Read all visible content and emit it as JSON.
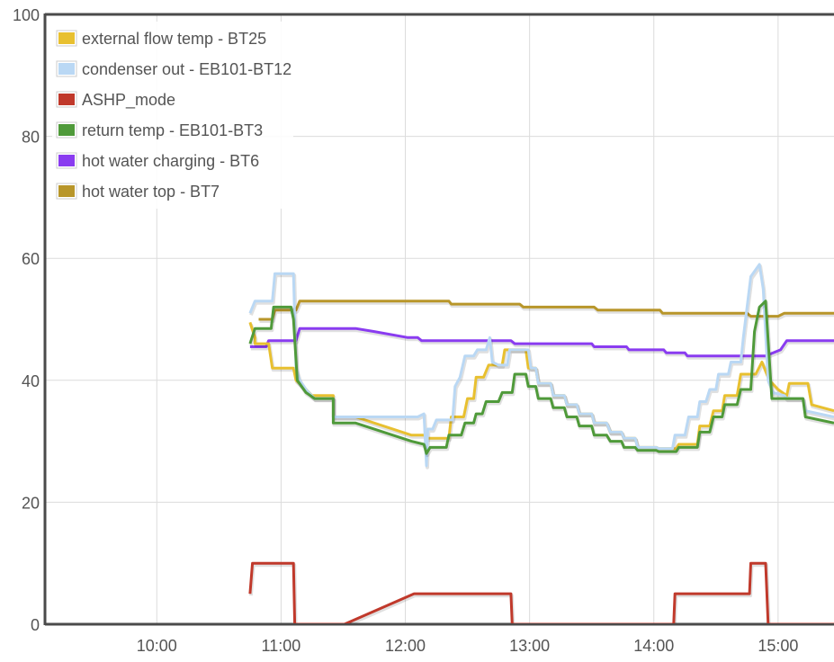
{
  "chart_data": {
    "type": "line",
    "title": "",
    "xlabel": "",
    "ylabel": "",
    "ylim": [
      0,
      100
    ],
    "xlim_hours": [
      9.1,
      15.45
    ],
    "grid": true,
    "legend_position": "top-left",
    "y_ticks": [
      {
        "value": 0,
        "label": "0"
      },
      {
        "value": 20,
        "label": "20"
      },
      {
        "value": 40,
        "label": "40"
      },
      {
        "value": 60,
        "label": "60"
      },
      {
        "value": 80,
        "label": "80"
      },
      {
        "value": 100,
        "label": "100"
      }
    ],
    "x_ticks": [
      {
        "value": 10,
        "label": "10:00"
      },
      {
        "value": 11,
        "label": "11:00"
      },
      {
        "value": 12,
        "label": "12:00"
      },
      {
        "value": 13,
        "label": "13:00"
      },
      {
        "value": 14,
        "label": "14:00"
      },
      {
        "value": 15,
        "label": "15:00"
      }
    ],
    "series": [
      {
        "name": "external flow temp - BT25",
        "color": "#e8c030",
        "points": [
          [
            10.75,
            49.5
          ],
          [
            10.79,
            47
          ],
          [
            10.79,
            46
          ],
          [
            10.9,
            46
          ],
          [
            10.93,
            42
          ],
          [
            11.1,
            42
          ],
          [
            11.12,
            40
          ],
          [
            11.2,
            38.5
          ],
          [
            11.25,
            37.5
          ],
          [
            11.42,
            37.5
          ],
          [
            11.42,
            34
          ],
          [
            11.6,
            34
          ],
          [
            12.05,
            31
          ],
          [
            12.15,
            31
          ],
          [
            12.18,
            30.5
          ],
          [
            12.35,
            30.5
          ],
          [
            12.37,
            34
          ],
          [
            12.47,
            34
          ],
          [
            12.5,
            37
          ],
          [
            12.55,
            37
          ],
          [
            12.57,
            40.5
          ],
          [
            12.63,
            40.5
          ],
          [
            12.67,
            42.5
          ],
          [
            12.78,
            42.5
          ],
          [
            12.8,
            45
          ],
          [
            12.97,
            45
          ],
          [
            12.99,
            42
          ],
          [
            13.05,
            42
          ],
          [
            13.07,
            39.5
          ],
          [
            13.17,
            39.5
          ],
          [
            13.19,
            37.5
          ],
          [
            13.28,
            37.5
          ],
          [
            13.3,
            36
          ],
          [
            13.38,
            36
          ],
          [
            13.4,
            34.5
          ],
          [
            13.5,
            34.5
          ],
          [
            13.52,
            33
          ],
          [
            13.62,
            33
          ],
          [
            13.65,
            31.5
          ],
          [
            13.74,
            31.5
          ],
          [
            13.76,
            30.5
          ],
          [
            13.85,
            30.5
          ],
          [
            13.87,
            29
          ],
          [
            14.02,
            29
          ],
          [
            14.04,
            28.8
          ],
          [
            14.18,
            28.8
          ],
          [
            14.2,
            29.5
          ],
          [
            14.35,
            29.5
          ],
          [
            14.37,
            32.5
          ],
          [
            14.45,
            32.5
          ],
          [
            14.48,
            35
          ],
          [
            14.55,
            35
          ],
          [
            14.57,
            37.5
          ],
          [
            14.67,
            37.5
          ],
          [
            14.7,
            41
          ],
          [
            14.82,
            41
          ],
          [
            14.87,
            43
          ],
          [
            14.93,
            40
          ],
          [
            15.0,
            38.5
          ],
          [
            15.07,
            37.5
          ],
          [
            15.09,
            39.5
          ],
          [
            15.24,
            39.5
          ],
          [
            15.27,
            36
          ],
          [
            15.45,
            35
          ]
        ]
      },
      {
        "name": "condenser out - EB101-BT12",
        "color": "#bad8f4",
        "points": [
          [
            10.75,
            51
          ],
          [
            10.79,
            53
          ],
          [
            10.93,
            53
          ],
          [
            10.95,
            57.5
          ],
          [
            11.1,
            57.5
          ],
          [
            11.12,
            42
          ],
          [
            11.15,
            40
          ],
          [
            11.2,
            38.5
          ],
          [
            11.27,
            37
          ],
          [
            11.42,
            37
          ],
          [
            11.42,
            34
          ],
          [
            11.62,
            34
          ],
          [
            11.8,
            34
          ],
          [
            12.1,
            34
          ],
          [
            12.15,
            34.5
          ],
          [
            12.17,
            26
          ],
          [
            12.18,
            32
          ],
          [
            12.22,
            32
          ],
          [
            12.25,
            33.5
          ],
          [
            12.38,
            33.5
          ],
          [
            12.4,
            39
          ],
          [
            12.44,
            40.5
          ],
          [
            12.48,
            44
          ],
          [
            12.55,
            44
          ],
          [
            12.58,
            45
          ],
          [
            12.65,
            45
          ],
          [
            12.68,
            47
          ],
          [
            12.7,
            43
          ],
          [
            12.75,
            42.5
          ],
          [
            12.82,
            42.5
          ],
          [
            12.84,
            45
          ],
          [
            12.99,
            45
          ],
          [
            13.01,
            42
          ],
          [
            13.05,
            42
          ],
          [
            13.07,
            39.5
          ],
          [
            13.17,
            39.5
          ],
          [
            13.19,
            37.5
          ],
          [
            13.28,
            37.5
          ],
          [
            13.3,
            36
          ],
          [
            13.38,
            36
          ],
          [
            13.4,
            34.5
          ],
          [
            13.5,
            34.5
          ],
          [
            13.52,
            33
          ],
          [
            13.62,
            33
          ],
          [
            13.65,
            31.5
          ],
          [
            13.74,
            31.5
          ],
          [
            13.76,
            30.5
          ],
          [
            13.85,
            30.5
          ],
          [
            13.87,
            29
          ],
          [
            14.02,
            29
          ],
          [
            14.04,
            28.8
          ],
          [
            14.15,
            28.8
          ],
          [
            14.17,
            31
          ],
          [
            14.25,
            31
          ],
          [
            14.28,
            34
          ],
          [
            14.35,
            34
          ],
          [
            14.37,
            36.5
          ],
          [
            14.42,
            36.5
          ],
          [
            14.45,
            38.5
          ],
          [
            14.5,
            38.5
          ],
          [
            14.52,
            41
          ],
          [
            14.6,
            41
          ],
          [
            14.62,
            43
          ],
          [
            14.7,
            43
          ],
          [
            14.72,
            47
          ],
          [
            14.78,
            57
          ],
          [
            14.85,
            59
          ],
          [
            14.88,
            55
          ],
          [
            14.92,
            40
          ],
          [
            14.96,
            38
          ],
          [
            15.05,
            37.5
          ],
          [
            15.07,
            37
          ],
          [
            15.2,
            37
          ],
          [
            15.22,
            35
          ],
          [
            15.45,
            34
          ]
        ]
      },
      {
        "name": "ASHP_mode",
        "color": "#c0392b",
        "points": [
          [
            10.75,
            5
          ],
          [
            10.77,
            10
          ],
          [
            11.1,
            10
          ],
          [
            11.11,
            0
          ],
          [
            11.51,
            0
          ],
          [
            12.07,
            5
          ],
          [
            12.85,
            5
          ],
          [
            12.86,
            0
          ],
          [
            14.16,
            0
          ],
          [
            14.17,
            5
          ],
          [
            14.77,
            5
          ],
          [
            14.78,
            10
          ],
          [
            14.9,
            10
          ],
          [
            14.92,
            0
          ],
          [
            15.45,
            0
          ]
        ]
      },
      {
        "name": "return temp - EB101-BT3",
        "color": "#4f9a3a",
        "points": [
          [
            10.75,
            46
          ],
          [
            10.79,
            48.5
          ],
          [
            10.92,
            48.5
          ],
          [
            10.94,
            52
          ],
          [
            11.08,
            52
          ],
          [
            11.1,
            50
          ],
          [
            11.13,
            40
          ],
          [
            11.2,
            38
          ],
          [
            11.27,
            37
          ],
          [
            11.42,
            37
          ],
          [
            11.42,
            33
          ],
          [
            11.6,
            33
          ],
          [
            12.05,
            30
          ],
          [
            12.15,
            29.5
          ],
          [
            12.17,
            28
          ],
          [
            12.2,
            29
          ],
          [
            12.33,
            29
          ],
          [
            12.35,
            31
          ],
          [
            12.45,
            31
          ],
          [
            12.48,
            33
          ],
          [
            12.55,
            33
          ],
          [
            12.57,
            34.5
          ],
          [
            12.62,
            34.5
          ],
          [
            12.65,
            36.5
          ],
          [
            12.75,
            36.5
          ],
          [
            12.78,
            38
          ],
          [
            12.86,
            38
          ],
          [
            12.88,
            41
          ],
          [
            12.97,
            41
          ],
          [
            12.99,
            39
          ],
          [
            13.05,
            39
          ],
          [
            13.07,
            37
          ],
          [
            13.17,
            37
          ],
          [
            13.19,
            35.5
          ],
          [
            13.28,
            35.5
          ],
          [
            13.3,
            34
          ],
          [
            13.38,
            34
          ],
          [
            13.4,
            32.5
          ],
          [
            13.5,
            32.5
          ],
          [
            13.52,
            31
          ],
          [
            13.62,
            31
          ],
          [
            13.65,
            30
          ],
          [
            13.74,
            30
          ],
          [
            13.76,
            29
          ],
          [
            13.85,
            29
          ],
          [
            13.87,
            28.5
          ],
          [
            14.02,
            28.5
          ],
          [
            14.04,
            28.3
          ],
          [
            14.18,
            28.3
          ],
          [
            14.2,
            29
          ],
          [
            14.35,
            29
          ],
          [
            14.37,
            31.5
          ],
          [
            14.45,
            31.5
          ],
          [
            14.48,
            34
          ],
          [
            14.55,
            34
          ],
          [
            14.57,
            36
          ],
          [
            14.67,
            36
          ],
          [
            14.7,
            38.5
          ],
          [
            14.78,
            38.5
          ],
          [
            14.81,
            48
          ],
          [
            14.85,
            52
          ],
          [
            14.9,
            53
          ],
          [
            14.95,
            37
          ],
          [
            15.2,
            37
          ],
          [
            15.22,
            34
          ],
          [
            15.45,
            33
          ]
        ]
      },
      {
        "name": "hot water charging - BT6",
        "color": "#8a3cf0",
        "points": [
          [
            10.75,
            45.5
          ],
          [
            10.88,
            45.5
          ],
          [
            10.9,
            46.5
          ],
          [
            11.12,
            46.5
          ],
          [
            11.15,
            48.5
          ],
          [
            11.6,
            48.5
          ],
          [
            11.75,
            48
          ],
          [
            12.02,
            47
          ],
          [
            12.1,
            47
          ],
          [
            12.13,
            46.5
          ],
          [
            12.85,
            46.5
          ],
          [
            12.88,
            46
          ],
          [
            13.5,
            46
          ],
          [
            13.52,
            45.5
          ],
          [
            13.78,
            45.5
          ],
          [
            13.8,
            45
          ],
          [
            14.08,
            45
          ],
          [
            14.1,
            44.5
          ],
          [
            14.25,
            44.5
          ],
          [
            14.27,
            44
          ],
          [
            14.9,
            44
          ],
          [
            15.02,
            45
          ],
          [
            15.07,
            46.5
          ],
          [
            15.45,
            46.5
          ]
        ]
      },
      {
        "name": "hot water top - BT7",
        "color": "#b8962a",
        "points": [
          [
            10.82,
            50
          ],
          [
            10.93,
            50
          ],
          [
            10.95,
            51.5
          ],
          [
            11.12,
            51.5
          ],
          [
            11.15,
            53
          ],
          [
            12.35,
            53
          ],
          [
            12.37,
            52.5
          ],
          [
            12.92,
            52.5
          ],
          [
            12.95,
            52
          ],
          [
            13.52,
            52
          ],
          [
            13.55,
            51.5
          ],
          [
            14.05,
            51.5
          ],
          [
            14.07,
            51
          ],
          [
            14.75,
            51
          ],
          [
            14.78,
            50.5
          ],
          [
            15.0,
            50.5
          ],
          [
            15.05,
            51
          ],
          [
            15.45,
            51
          ]
        ]
      }
    ]
  }
}
